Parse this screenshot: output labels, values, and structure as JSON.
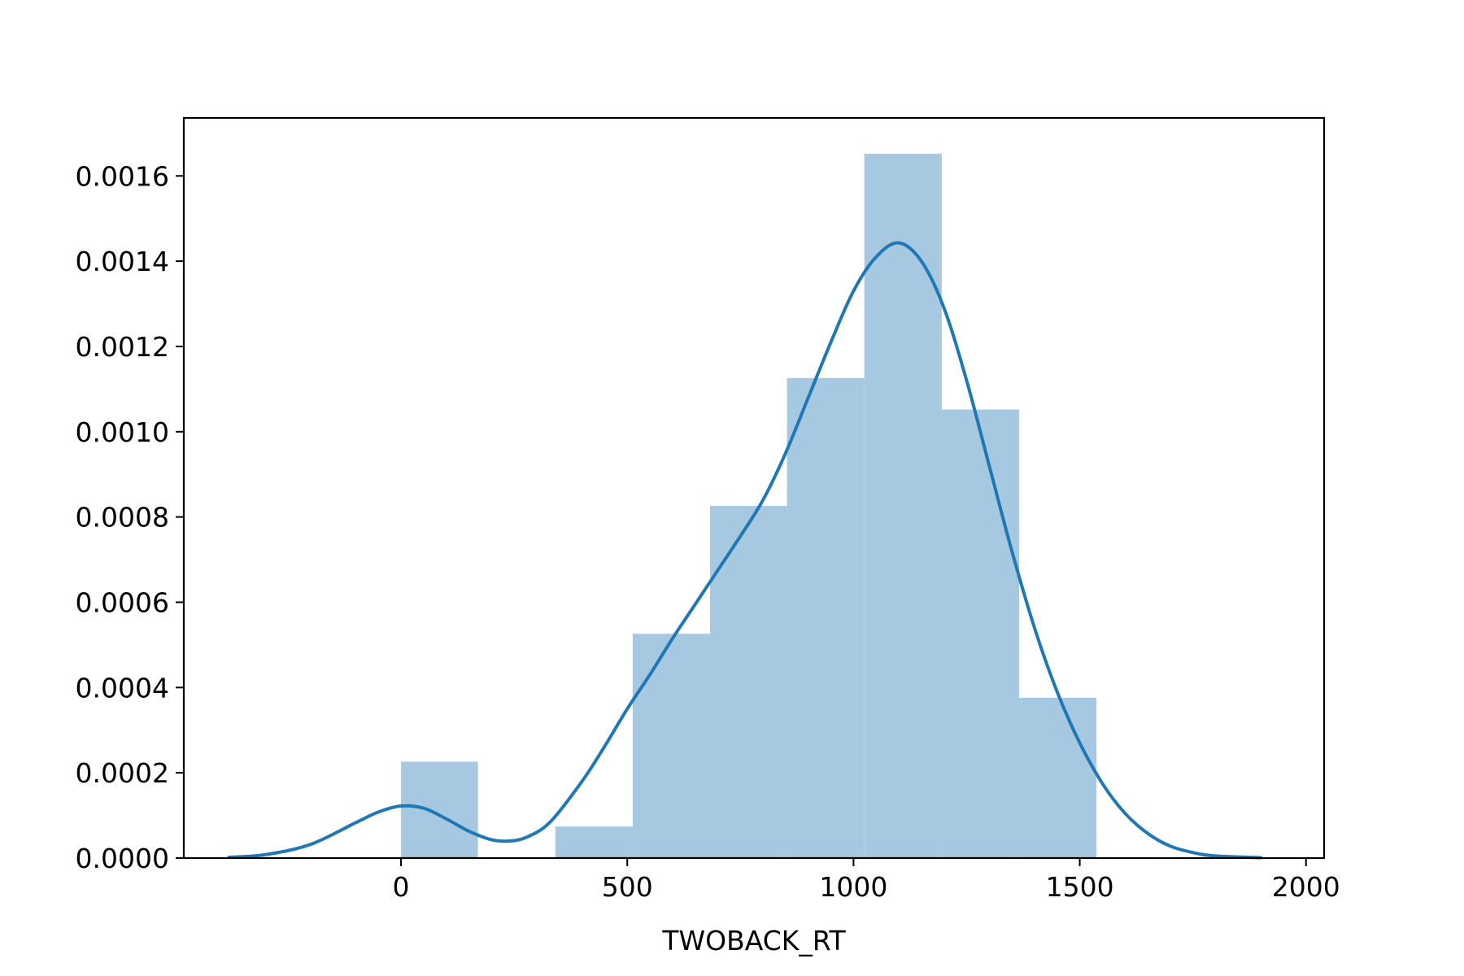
{
  "chart_data": {
    "type": "bar",
    "title": "",
    "xlabel": "TWOBACK_RT",
    "ylabel": "",
    "xlim": [
      -480,
      2040
    ],
    "ylim": [
      0,
      0.001736
    ],
    "xticks": [
      "0",
      "500",
      "1000",
      "1500",
      "2000"
    ],
    "xtick_values": [
      0,
      500,
      1000,
      1500,
      2000
    ],
    "yticks": [
      "0.0000",
      "0.0002",
      "0.0004",
      "0.0006",
      "0.0008",
      "0.0010",
      "0.0012",
      "0.0014",
      "0.0016"
    ],
    "ytick_values": [
      0,
      0.0002,
      0.0004,
      0.0006,
      0.0008,
      0.001,
      0.0012,
      0.0014,
      0.0016
    ],
    "grid": false,
    "colors": {
      "bars": "#a6c8e0",
      "kde": "#1f77b4",
      "axes": "#000000"
    },
    "histogram": {
      "bin_edges": [
        0,
        170,
        341,
        512,
        683,
        853,
        1024,
        1195,
        1366,
        1537
      ],
      "densities": [
        0.000226,
        0,
        7.4e-05,
        0.000526,
        0.000826,
        0.001126,
        0.001652,
        0.001052,
        0.000376
      ]
    },
    "kde": {
      "x": [
        -380,
        -300,
        -200,
        -100,
        -50,
        0,
        50,
        100,
        150,
        200,
        240,
        280,
        330,
        400,
        450,
        500,
        550,
        600,
        650,
        700,
        750,
        800,
        850,
        900,
        950,
        1000,
        1050,
        1100,
        1150,
        1200,
        1250,
        1300,
        1350,
        1400,
        1450,
        1500,
        1550,
        1600,
        1650,
        1700,
        1750,
        1800,
        1900
      ],
      "y": [
        2e-06,
        8e-06,
        3.2e-05,
        8.3e-05,
        0.000108,
        0.000122,
        0.000117,
        9.2e-05,
        6.3e-05,
        4.3e-05,
        4e-05,
        5e-05,
        8.5e-05,
        0.00018,
        0.000262,
        0.00035,
        0.00043,
        0.000515,
        0.000595,
        0.000675,
        0.000755,
        0.00084,
        0.00095,
        0.00108,
        0.00121,
        0.00133,
        0.00141,
        0.001443,
        0.0014,
        0.00129,
        0.00112,
        0.00092,
        0.00072,
        0.00054,
        0.00039,
        0.00027,
        0.000175,
        0.000105,
        5.8e-05,
        2.8e-05,
        1.3e-05,
        5e-06,
        1e-06
      ]
    }
  }
}
